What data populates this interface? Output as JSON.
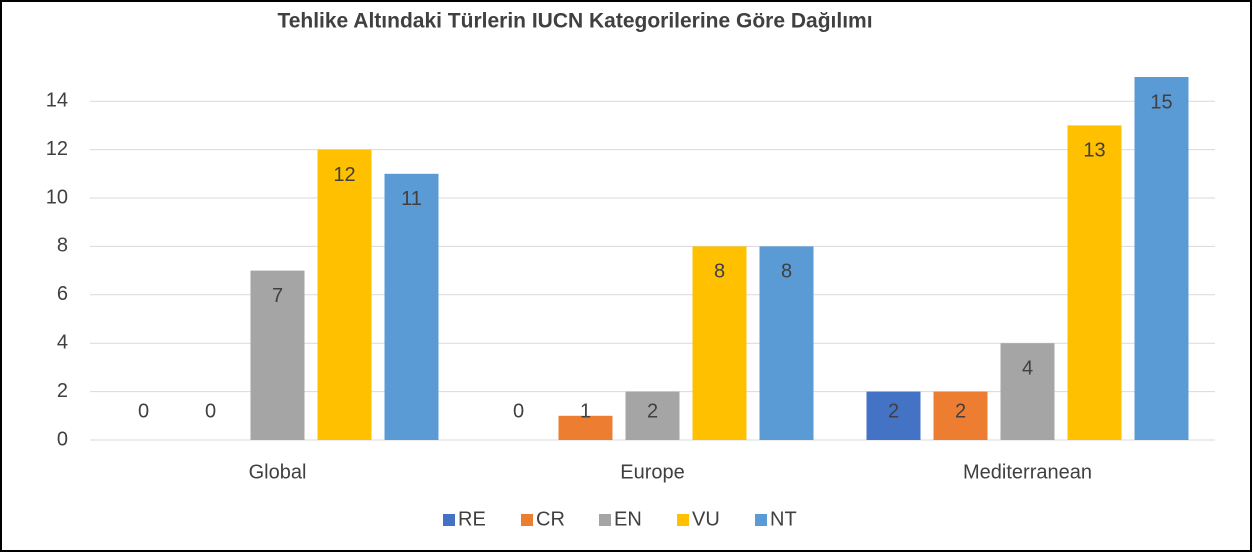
{
  "chart_data": {
    "type": "bar",
    "title": "Tehlike Altındaki Türlerin IUCN Kategorilerine Göre Dağılımı",
    "categories": [
      "Global",
      "Europe",
      "Mediterranean"
    ],
    "series": [
      {
        "name": "RE",
        "color": "#4472c4",
        "values": [
          0,
          0,
          2
        ]
      },
      {
        "name": "CR",
        "color": "#ed7d31",
        "values": [
          0,
          1,
          2
        ]
      },
      {
        "name": "EN",
        "color": "#a5a5a5",
        "values": [
          7,
          2,
          4
        ]
      },
      {
        "name": "VU",
        "color": "#ffc000",
        "values": [
          12,
          8,
          13
        ]
      },
      {
        "name": "NT",
        "color": "#5b9bd5",
        "values": [
          11,
          8,
          15
        ]
      }
    ],
    "ylim": [
      0,
      15
    ],
    "yticks": [
      0,
      2,
      4,
      6,
      8,
      10,
      12,
      14
    ],
    "grid": true,
    "legend": "bottom"
  }
}
